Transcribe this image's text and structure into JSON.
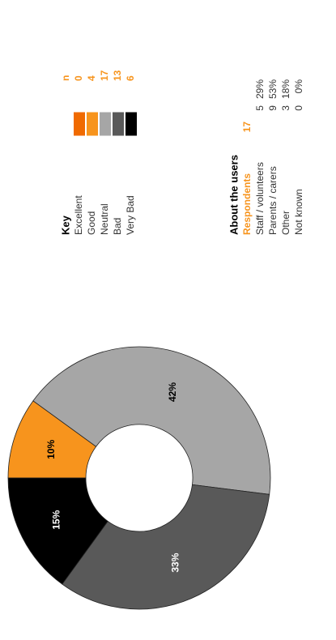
{
  "chart_data": {
    "type": "pie",
    "categories": [
      "Good",
      "Neutral",
      "Bad",
      "Very Bad"
    ],
    "values": [
      10,
      42,
      33,
      15
    ],
    "value_labels": [
      "10%",
      "42%",
      "33%",
      "15%"
    ],
    "colors": [
      "#f7941d",
      "#a6a6a6",
      "#595959",
      "#000000"
    ],
    "label_colors": [
      "#000000",
      "#000000",
      "#ffffff",
      "#ffffff"
    ]
  },
  "key": {
    "title": "Key",
    "n_header": "n",
    "items": [
      {
        "label": "Excellent",
        "color": "#f06a00",
        "n": 0
      },
      {
        "label": "Good",
        "color": "#f7941d",
        "n": 4
      },
      {
        "label": "Neutral",
        "color": "#a6a6a6",
        "n": 17
      },
      {
        "label": "Bad",
        "color": "#595959",
        "n": 13
      },
      {
        "label": "Very Bad",
        "color": "#000000",
        "n": 6
      }
    ]
  },
  "users": {
    "title": "About the users",
    "respondents": {
      "label": "Respondents",
      "n": 17
    },
    "rows": [
      [
        "Staff / volunteers",
        "5",
        "29%"
      ],
      [
        "Parents / carers",
        "9",
        "53%"
      ],
      [
        "Other",
        "3",
        "18%"
      ],
      [
        "Not known",
        "0",
        "0%"
      ]
    ]
  }
}
